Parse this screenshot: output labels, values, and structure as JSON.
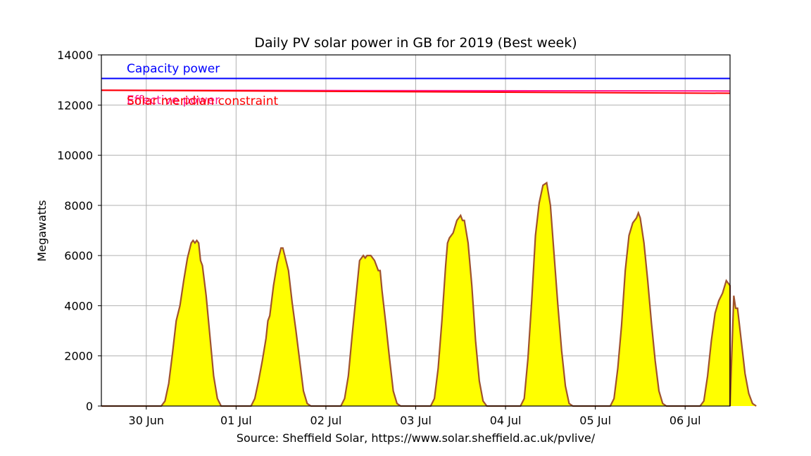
{
  "chart_data": {
    "type": "area",
    "title": "Daily PV solar power in GB for 2019 (Best week)",
    "xlabel": "Source: Sheffield Solar, https://www.solar.sheffield.ac.uk/pvlive/",
    "ylabel": "Megawatts",
    "xlim": [
      "2019-06-29T12:00",
      "2019-07-06T12:00"
    ],
    "ylim": [
      0,
      14000
    ],
    "yticks": [
      0,
      2000,
      4000,
      6000,
      8000,
      10000,
      12000,
      14000
    ],
    "ytick_labels": [
      "0",
      "2000",
      "4000",
      "6000",
      "8000",
      "10000",
      "12000",
      "14000"
    ],
    "xticks": [
      "2019-06-30",
      "2019-07-01",
      "2019-07-02",
      "2019-07-03",
      "2019-07-04",
      "2019-07-05",
      "2019-07-06"
    ],
    "xtick_labels": [
      "30 Jun",
      "01 Jul",
      "02 Jul",
      "03 Jul",
      "04 Jul",
      "05 Jul",
      "06 Jul"
    ],
    "grid": true,
    "colors": {
      "fill": "#ffff00",
      "line": "#a0522d",
      "capacity": "#0000ff",
      "effective": "#ff1493",
      "meridian": "#ff0000"
    },
    "annotations": [
      {
        "text": "Capacity power",
        "color": "#0000ff"
      },
      {
        "text": "Effective power",
        "color": "#ff1493"
      },
      {
        "text": "Solar meridian constraint",
        "color": "#ff0000"
      }
    ],
    "reference_lines": [
      {
        "name": "Capacity power",
        "y_start": 13060,
        "y_end": 13060
      },
      {
        "name": "Effective power",
        "y_start": 12590,
        "y_end": 12560
      },
      {
        "name": "Solar meridian constraint",
        "y_start": 12590,
        "y_end": 12470
      }
    ],
    "series": [
      {
        "daily_profiles": [
          {
            "date": "2019-06-30",
            "points": [
              [
                "04:00",
                0
              ],
              [
                "05:00",
                200
              ],
              [
                "06:00",
                900
              ],
              [
                "07:00",
                2100
              ],
              [
                "08:00",
                3400
              ],
              [
                "09:00",
                4000
              ],
              [
                "10:00",
                5000
              ],
              [
                "11:00",
                5900
              ],
              [
                "12:00",
                6500
              ],
              [
                "12:30",
                6600
              ],
              [
                "13:00",
                6500
              ],
              [
                "13:30",
                6600
              ],
              [
                "14:00",
                6500
              ],
              [
                "14:30",
                5800
              ],
              [
                "15:00",
                5600
              ],
              [
                "15:30",
                5000
              ],
              [
                "16:00",
                4400
              ],
              [
                "17:00",
                2800
              ],
              [
                "18:00",
                1200
              ],
              [
                "19:00",
                300
              ],
              [
                "20:00",
                0
              ]
            ]
          },
          {
            "date": "2019-07-01",
            "points": [
              [
                "04:00",
                0
              ],
              [
                "05:00",
                300
              ],
              [
                "06:00",
                1000
              ],
              [
                "07:00",
                1800
              ],
              [
                "08:00",
                2700
              ],
              [
                "08:30",
                3400
              ],
              [
                "09:00",
                3600
              ],
              [
                "10:00",
                4800
              ],
              [
                "11:00",
                5700
              ],
              [
                "12:00",
                6300
              ],
              [
                "12:30",
                6300
              ],
              [
                "13:00",
                6000
              ],
              [
                "14:00",
                5400
              ],
              [
                "15:00",
                4100
              ],
              [
                "16:00",
                3000
              ],
              [
                "17:00",
                1800
              ],
              [
                "18:00",
                600
              ],
              [
                "19:00",
                100
              ],
              [
                "20:00",
                0
              ]
            ]
          },
          {
            "date": "2019-07-02",
            "points": [
              [
                "04:00",
                0
              ],
              [
                "05:00",
                300
              ],
              [
                "06:00",
                1200
              ],
              [
                "07:00",
                2800
              ],
              [
                "08:00",
                4300
              ],
              [
                "09:00",
                5800
              ],
              [
                "10:00",
                6000
              ],
              [
                "10:30",
                5900
              ],
              [
                "11:00",
                6000
              ],
              [
                "12:00",
                6000
              ],
              [
                "13:00",
                5800
              ],
              [
                "13:30",
                5600
              ],
              [
                "14:00",
                5400
              ],
              [
                "14:30",
                5400
              ],
              [
                "15:00",
                4600
              ],
              [
                "16:00",
                3300
              ],
              [
                "17:00",
                1900
              ],
              [
                "18:00",
                600
              ],
              [
                "19:00",
                100
              ],
              [
                "20:00",
                0
              ]
            ]
          },
          {
            "date": "2019-07-03",
            "points": [
              [
                "04:00",
                0
              ],
              [
                "05:00",
                300
              ],
              [
                "06:00",
                1500
              ],
              [
                "07:00",
                3400
              ],
              [
                "08:00",
                5600
              ],
              [
                "08:30",
                6500
              ],
              [
                "09:00",
                6700
              ],
              [
                "10:00",
                6900
              ],
              [
                "11:00",
                7400
              ],
              [
                "12:00",
                7600
              ],
              [
                "12:30",
                7400
              ],
              [
                "13:00",
                7400
              ],
              [
                "14:00",
                6500
              ],
              [
                "15:00",
                4800
              ],
              [
                "16:00",
                2600
              ],
              [
                "17:00",
                1000
              ],
              [
                "18:00",
                200
              ],
              [
                "19:00",
                0
              ]
            ]
          },
          {
            "date": "2019-07-04",
            "points": [
              [
                "04:00",
                0
              ],
              [
                "05:00",
                300
              ],
              [
                "06:00",
                1900
              ],
              [
                "07:00",
                4200
              ],
              [
                "08:00",
                6800
              ],
              [
                "09:00",
                8100
              ],
              [
                "10:00",
                8800
              ],
              [
                "11:00",
                8900
              ],
              [
                "12:00",
                8000
              ],
              [
                "13:00",
                6000
              ],
              [
                "14:00",
                4000
              ],
              [
                "15:00",
                2200
              ],
              [
                "16:00",
                800
              ],
              [
                "17:00",
                100
              ],
              [
                "18:00",
                0
              ]
            ]
          },
          {
            "date": "2019-07-05",
            "points": [
              [
                "04:00",
                0
              ],
              [
                "05:00",
                300
              ],
              [
                "06:00",
                1500
              ],
              [
                "07:00",
                3200
              ],
              [
                "08:00",
                5400
              ],
              [
                "09:00",
                6800
              ],
              [
                "10:00",
                7300
              ],
              [
                "11:00",
                7500
              ],
              [
                "11:30",
                7700
              ],
              [
                "12:00",
                7500
              ],
              [
                "13:00",
                6500
              ],
              [
                "14:00",
                5000
              ],
              [
                "15:00",
                3300
              ],
              [
                "16:00",
                1800
              ],
              [
                "17:00",
                600
              ],
              [
                "18:00",
                100
              ],
              [
                "19:00",
                0
              ]
            ]
          },
          {
            "date": "2019-07-06",
            "points": [
              [
                "04:00",
                0
              ],
              [
                "05:00",
                200
              ],
              [
                "06:00",
                1200
              ],
              [
                "07:00",
                2600
              ],
              [
                "08:00",
                3700
              ],
              [
                "09:00",
                4200
              ],
              [
                "10:00",
                4500
              ],
              [
                "11:00",
                5000
              ],
              [
                "12:00",
                4800
              ],
              [
                "13:00",
                4400
              ],
              [
                "13:30",
                3900
              ],
              [
                "14:00",
                3900
              ],
              [
                "15:00",
                2600
              ],
              [
                "16:00",
                1300
              ],
              [
                "17:00",
                500
              ],
              [
                "18:00",
                100
              ],
              [
                "19:00",
                0
              ]
            ]
          }
        ]
      }
    ]
  }
}
